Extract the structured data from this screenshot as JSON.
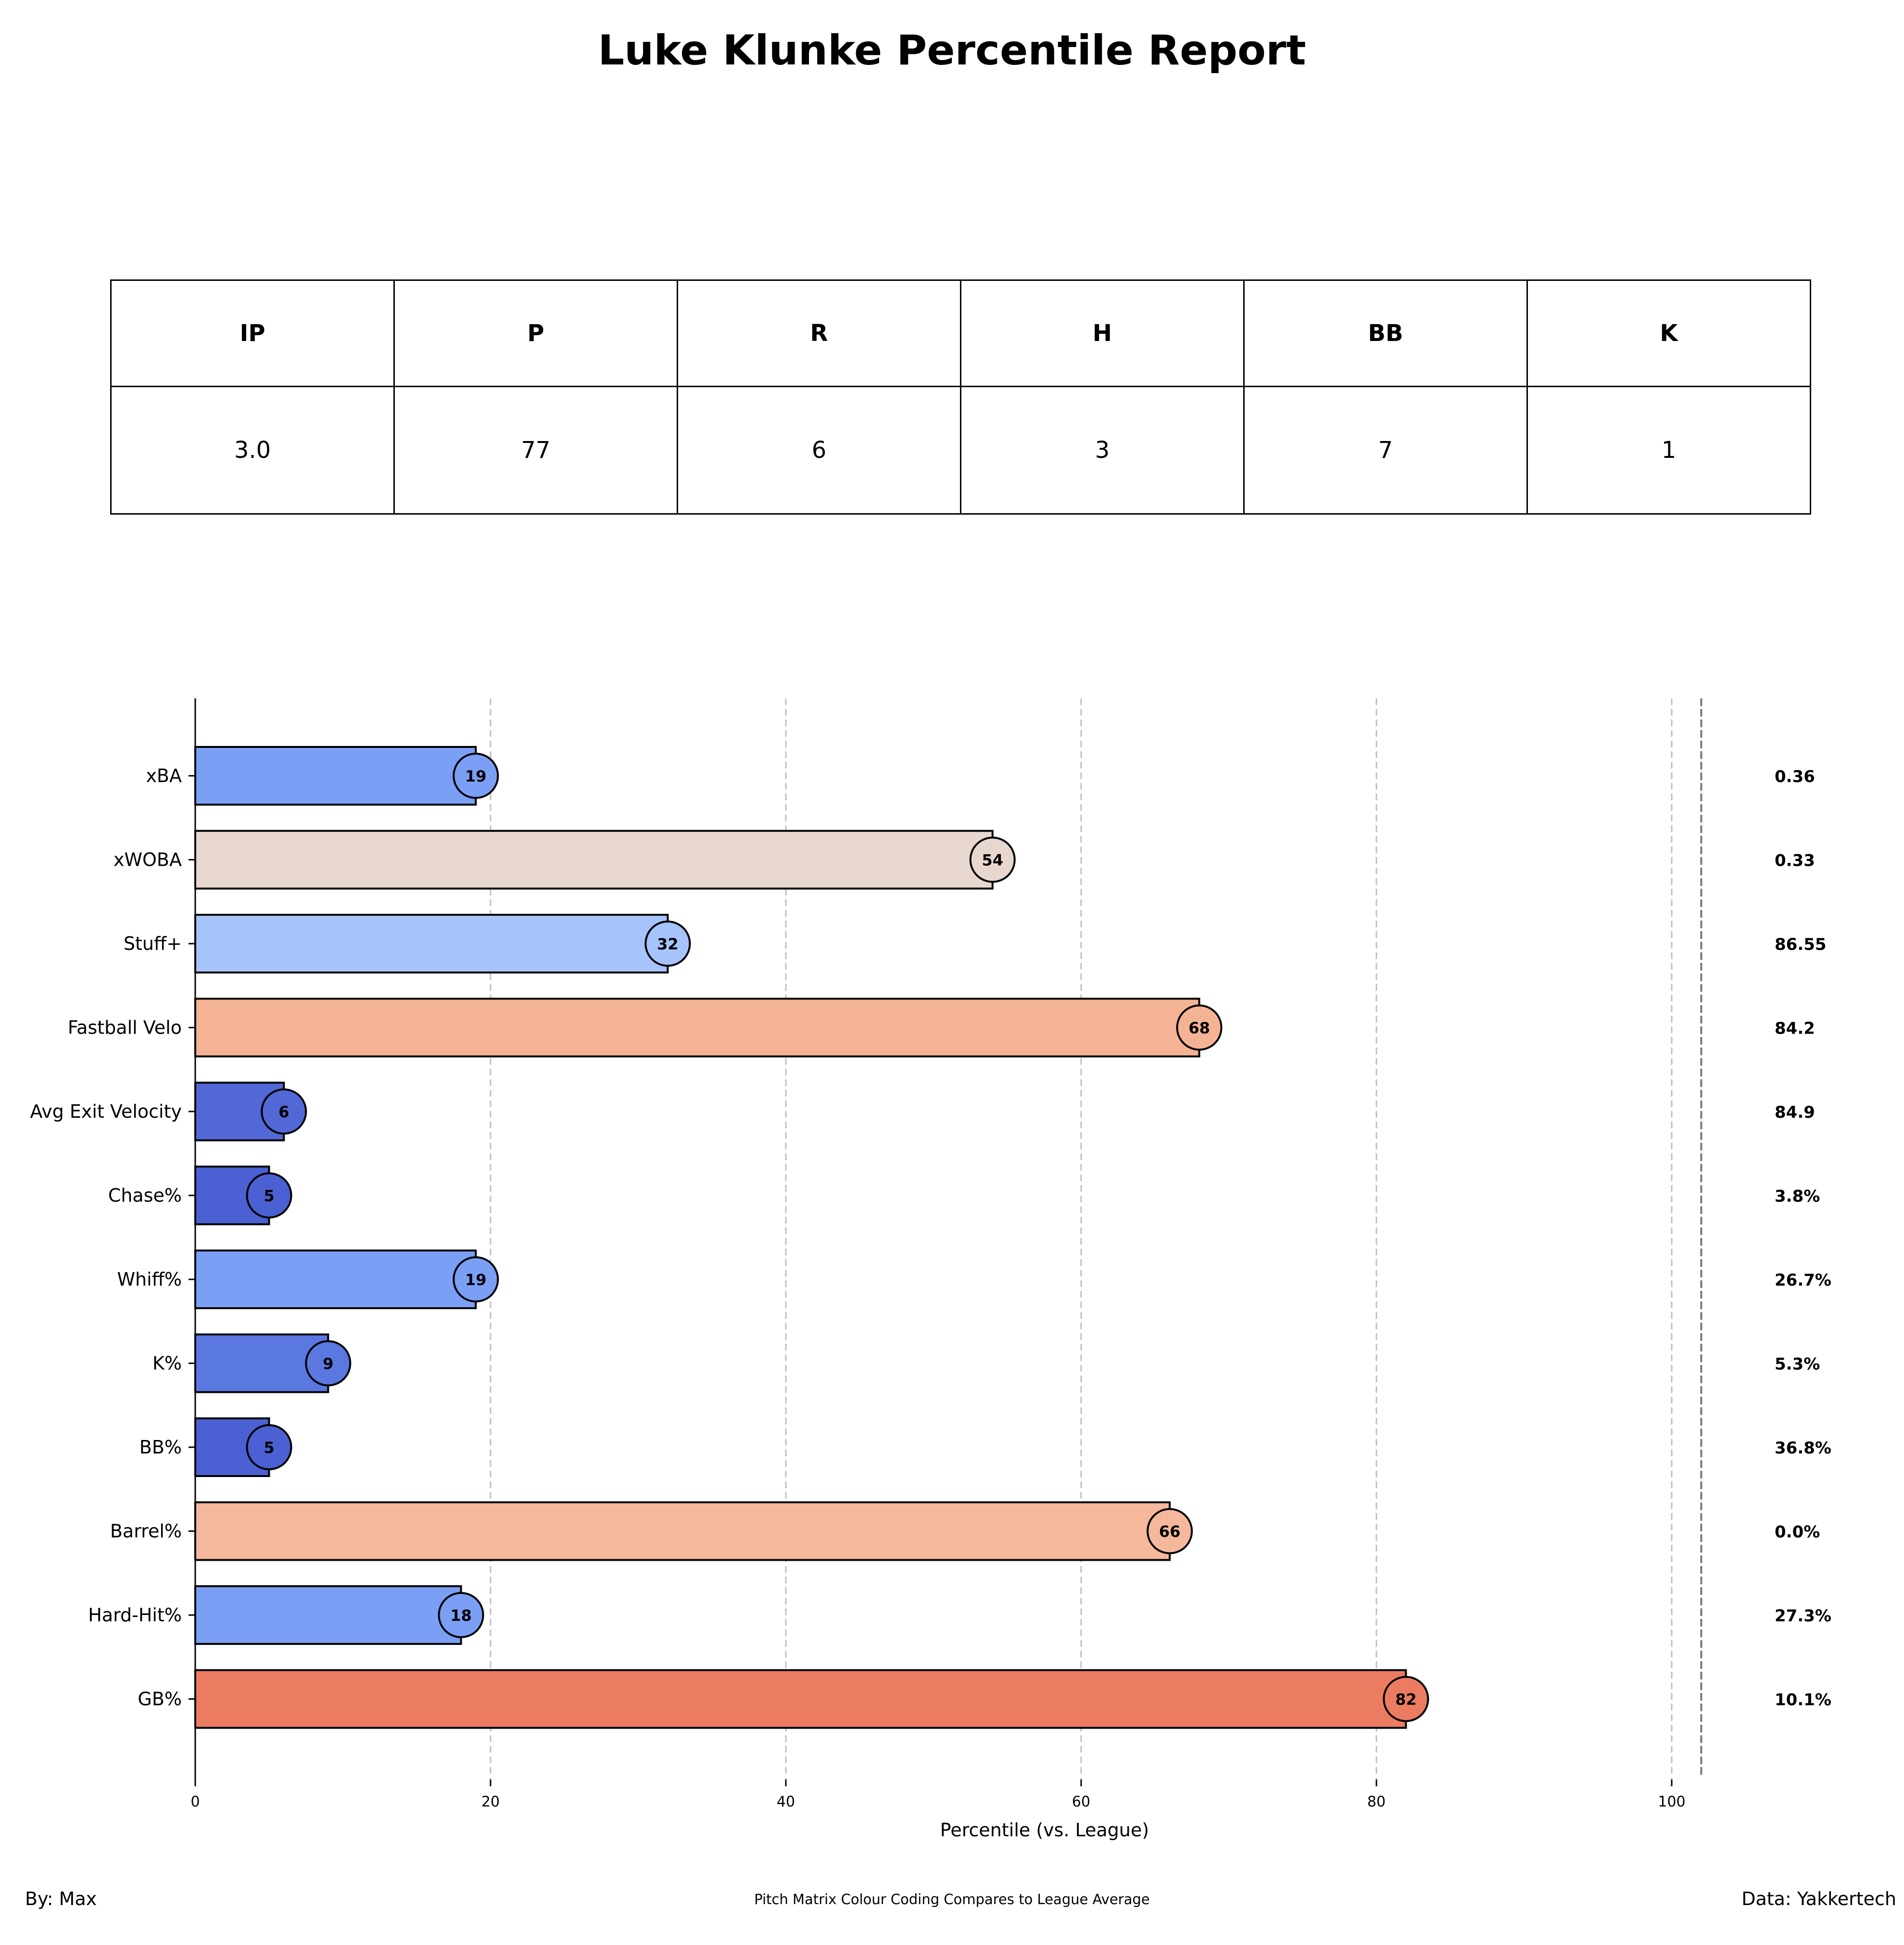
{
  "title": "Luke Klunke Percentile Report",
  "stats_table": {
    "headers": [
      "IP",
      "P",
      "R",
      "H",
      "BB",
      "K"
    ],
    "values": [
      "3.0",
      "77",
      "6",
      "3",
      "7",
      "1"
    ]
  },
  "chart_data": {
    "type": "bar",
    "orientation": "horizontal",
    "xlabel": "Percentile (vs. League)",
    "ylabel": "",
    "xlim": [
      0,
      102
    ],
    "xticks": [
      0,
      20,
      40,
      60,
      80,
      100
    ],
    "grid": "vertical-dashed",
    "categories": [
      "xBA",
      "xWOBA",
      "Stuff+",
      "Fastball Velo",
      "Avg Exit Velocity",
      "Chase%",
      "Whiff%",
      "K%",
      "BB%",
      "Barrel%",
      "Hard-Hit%",
      "GB%"
    ],
    "values": [
      19,
      54,
      32,
      68,
      6,
      5,
      19,
      9,
      5,
      66,
      18,
      82
    ],
    "stat_values": [
      "0.36",
      "0.33",
      "86.55",
      "84.2",
      "84.9",
      "3.8%",
      "26.7%",
      "5.3%",
      "36.8%",
      "0.0%",
      "27.3%",
      "10.1%"
    ],
    "colors": [
      "#7b9ff5",
      "#e8d7cf",
      "#a7c3fc",
      "#f5b396",
      "#5168d6",
      "#4b60d2",
      "#7b9ff5",
      "#5b77e0",
      "#4b60d2",
      "#f5b89c",
      "#7b9ff5",
      "#ec7c61"
    ],
    "colormap": "coolwarm"
  },
  "footer": {
    "left": "By: Max",
    "center": "Pitch Matrix Colour Coding Compares to League Average",
    "right": "Data: Yakkertech"
  }
}
